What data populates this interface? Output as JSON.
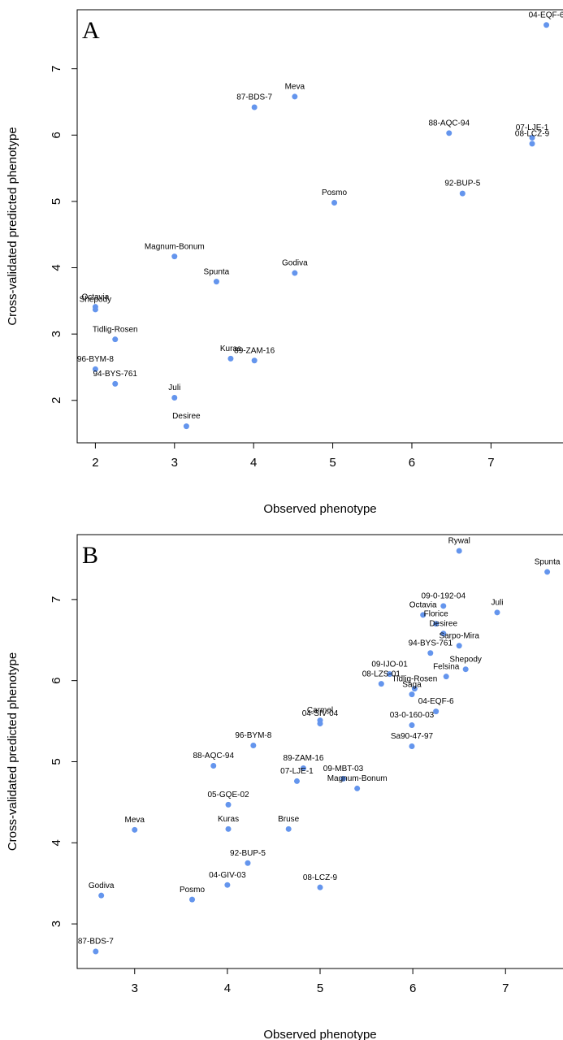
{
  "chart_data": [
    {
      "type": "scatter",
      "panel_label": "A",
      "x_label": "Observed phenotype",
      "y_label": "Cross-validated predicted phenotype",
      "xlim": [
        1.77,
        7.91
      ],
      "ylim": [
        1.36,
        7.89
      ],
      "xticks": [
        2,
        3,
        4,
        5,
        6,
        7
      ],
      "yticks": [
        2,
        3,
        4,
        5,
        6,
        7
      ],
      "series": [
        {
          "color": "#6495ed",
          "point_labels": [
            "04-EQF-6",
            "87-BDS-7",
            "Meva",
            "88-AQC-94",
            "07-LJE-1",
            "08-LCZ-9",
            "92-BUP-5",
            "Posmo",
            "Magnum-Bonum",
            "Spunta",
            "Godiva",
            "Octavia",
            "Shepody",
            "Tidlig-Rosen",
            "96-BYM-8",
            "94-BYS-761",
            "Kuras",
            "89-ZAM-16",
            "Juli",
            "Desiree"
          ],
          "x": [
            7.7,
            4.01,
            4.52,
            6.47,
            7.52,
            7.52,
            6.64,
            5.02,
            3.0,
            3.53,
            4.52,
            2.0,
            2.0,
            2.25,
            2.0,
            2.25,
            3.71,
            4.01,
            3.0,
            3.15
          ],
          "values": [
            7.66,
            6.42,
            6.58,
            6.03,
            5.96,
            5.87,
            5.12,
            4.98,
            4.17,
            3.79,
            3.92,
            3.41,
            3.37,
            2.92,
            2.47,
            2.25,
            2.63,
            2.6,
            2.04,
            1.61
          ]
        }
      ]
    },
    {
      "type": "scatter",
      "panel_label": "B",
      "x_label": "Observed phenotype",
      "y_label": "Cross-validated predicted phenotype",
      "xlim": [
        2.38,
        7.62
      ],
      "ylim": [
        2.45,
        7.8
      ],
      "xticks": [
        3,
        4,
        5,
        6,
        7
      ],
      "yticks": [
        3,
        4,
        5,
        6,
        7
      ],
      "series": [
        {
          "color": "#6495ed",
          "point_labels": [
            "Rywal",
            "Spunta",
            "09-0-192-04",
            "Octavia",
            "Florice",
            "Juli",
            "Desiree",
            "Sarpo-Mira",
            "94-BYS-761",
            "Shepody",
            "Felsina",
            "09-IJO-01",
            "08-LZS-01",
            "Tidlig-Rosen",
            "Saga",
            "04-EQF-6",
            "03-0-160-03",
            "Sa90-47-97",
            "Carmel",
            "04-SIV-04",
            "96-BYM-8",
            "88-AQC-94",
            "89-ZAM-16",
            "07-LJE-1",
            "09-MBT-03",
            "Magnum-Bonum",
            "05-GQE-02",
            "Kuras",
            "Bruse",
            "Meva",
            "92-BUP-5",
            "04-GIV-03",
            "08-LCZ-9",
            "Godiva",
            "Posmo",
            "87-BDS-7"
          ],
          "x": [
            6.5,
            7.45,
            6.33,
            6.11,
            6.25,
            6.91,
            6.33,
            6.5,
            6.19,
            6.57,
            6.36,
            5.75,
            5.66,
            6.02,
            5.99,
            6.25,
            5.99,
            5.99,
            5.0,
            5.0,
            4.28,
            3.85,
            4.82,
            4.75,
            5.25,
            5.4,
            4.01,
            4.01,
            4.66,
            3.0,
            4.22,
            4.0,
            5.0,
            2.64,
            3.62,
            2.58
          ],
          "values": [
            7.6,
            7.34,
            6.92,
            6.81,
            6.7,
            6.84,
            6.58,
            6.43,
            6.34,
            6.14,
            6.05,
            6.08,
            5.96,
            5.9,
            5.83,
            5.62,
            5.45,
            5.19,
            5.51,
            5.47,
            5.2,
            4.95,
            4.92,
            4.76,
            4.79,
            4.67,
            4.47,
            4.17,
            4.17,
            4.16,
            3.75,
            3.48,
            3.45,
            3.35,
            3.3,
            2.66
          ]
        }
      ]
    }
  ]
}
